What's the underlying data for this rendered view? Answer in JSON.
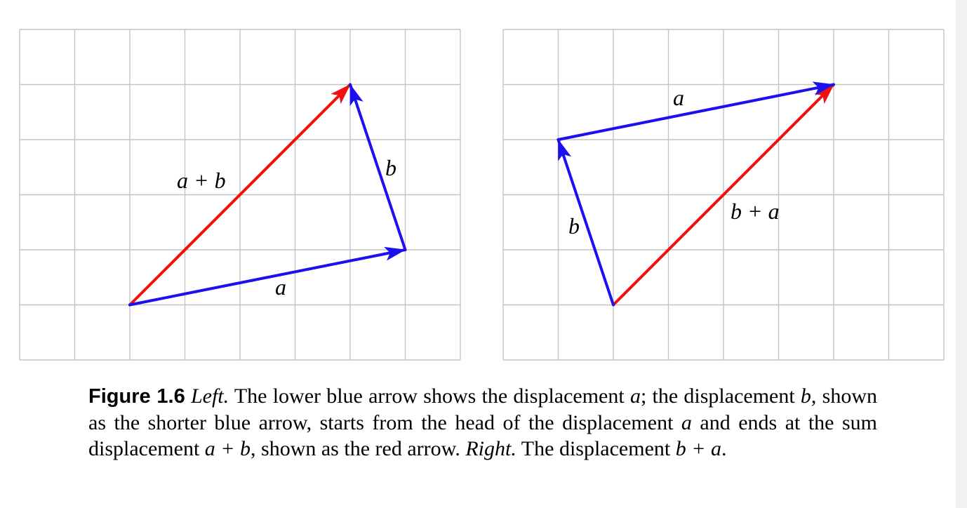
{
  "figure": {
    "left_panel": {
      "vectors": [
        {
          "name": "a",
          "from": [
            2,
            1
          ],
          "to": [
            7,
            2
          ],
          "color": "#1a10f0"
        },
        {
          "name": "b",
          "from": [
            7,
            2
          ],
          "to": [
            6,
            5
          ],
          "color": "#1a10f0"
        },
        {
          "name": "a + b",
          "from": [
            2,
            1
          ],
          "to": [
            6,
            5
          ],
          "color": "#f01010"
        }
      ],
      "labels": {
        "a": "a",
        "b": "b",
        "sum": "a + b"
      }
    },
    "right_panel": {
      "vectors": [
        {
          "name": "b",
          "from": [
            2,
            1
          ],
          "to": [
            1,
            4
          ],
          "color": "#1a10f0"
        },
        {
          "name": "a",
          "from": [
            1,
            4
          ],
          "to": [
            6,
            5
          ],
          "color": "#1a10f0"
        },
        {
          "name": "b + a",
          "from": [
            2,
            1
          ],
          "to": [
            6,
            5
          ],
          "color": "#f01010"
        }
      ],
      "labels": {
        "a": "a",
        "b": "b",
        "sum": "b + a"
      }
    },
    "grid": {
      "columns": 8,
      "rows": 6
    }
  },
  "caption": {
    "figure_number": "Figure 1.6",
    "left_word": "Left.",
    "text_1": " The lower blue arrow shows the displacement ",
    "var_a1": "a",
    "text_2": "; the displacement ",
    "var_b1": "b",
    "text_3": ", shown as the shorter blue arrow, starts from the head of the displacement ",
    "var_a2": "a",
    "text_4": " and ends at the sum displacement ",
    "sum_ab": "a + b",
    "text_5": ", shown as the red arrow. ",
    "right_word": "Right.",
    "text_6": " The displacement ",
    "sum_ba": "b + a",
    "text_7": "."
  }
}
